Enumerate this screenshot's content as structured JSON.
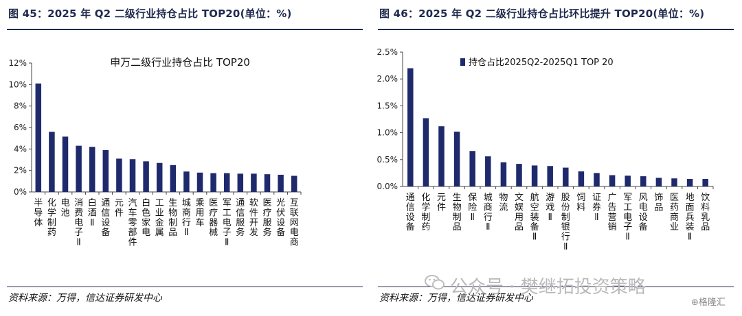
{
  "left": {
    "figure_title": "图 45：2025 年 Q2 二级行业持仓占比 TOP20(单位：%)",
    "source": "资料来源：万得，信达证券研发中心"
  },
  "right": {
    "figure_title": "图 46：2025 年 Q2 二级行业持仓占比环比提升 TOP20(单位：%)",
    "source": "资料来源：万得，信达证券研发中心"
  },
  "watermark": {
    "text": "公众号 · 樊继拓投资策略",
    "logo_text": "格隆汇"
  },
  "chart_data": [
    {
      "type": "bar",
      "title": "申万二级行业持仓占比 TOP20",
      "xlabel": "",
      "ylabel": "",
      "ylim": [
        0,
        12
      ],
      "yticks": [
        "0%",
        "2%",
        "4%",
        "6%",
        "8%",
        "10%",
        "12%"
      ],
      "ytick_values": [
        0,
        2,
        4,
        6,
        8,
        10,
        12
      ],
      "grid": false,
      "bar_color": "#1f2a6d",
      "categories": [
        "半导体",
        "化学制药",
        "电池",
        "消费电子Ⅱ",
        "白酒Ⅱ",
        "通信设备",
        "元件",
        "汽车零部件",
        "白色家电",
        "工业金属",
        "生物制品",
        "城商行Ⅱ",
        "乘用车",
        "医疗器械",
        "军工电子Ⅱ",
        "通信服务",
        "软件开发",
        "医疗服务",
        "光伏设备",
        "互联网电商"
      ],
      "values": [
        10.1,
        5.6,
        5.15,
        4.3,
        4.2,
        3.9,
        3.1,
        3.05,
        2.85,
        2.7,
        2.5,
        1.9,
        1.8,
        1.75,
        1.75,
        1.7,
        1.7,
        1.65,
        1.6,
        1.5
      ]
    },
    {
      "type": "bar",
      "title": "",
      "xlabel": "",
      "ylabel": "",
      "ylim": [
        0,
        2.5
      ],
      "yticks": [
        "0.0%",
        "0.5%",
        "1.0%",
        "1.5%",
        "2.0%",
        "2.5%"
      ],
      "ytick_values": [
        0,
        0.5,
        1.0,
        1.5,
        2.0,
        2.5
      ],
      "grid": false,
      "legend": "top-left",
      "bar_color": "#1f2a6d",
      "series": [
        {
          "name": "持仓占比2025Q2-2025Q1 TOP 20"
        }
      ],
      "categories": [
        "通信设备",
        "化学制药",
        "元件",
        "生物制品",
        "保险Ⅱ",
        "城商行Ⅱ",
        "物流",
        "文娱用品",
        "航空装备Ⅱ",
        "游戏Ⅱ",
        "股份制银行Ⅱ",
        "饲料",
        "证券Ⅱ",
        "广告营销",
        "军工电子Ⅱ",
        "风电设备",
        "饰品",
        "医药商业",
        "地面兵装Ⅱ",
        "饮料乳品"
      ],
      "values": [
        2.2,
        1.27,
        1.12,
        1.02,
        0.66,
        0.56,
        0.45,
        0.42,
        0.39,
        0.38,
        0.35,
        0.28,
        0.25,
        0.21,
        0.2,
        0.19,
        0.16,
        0.15,
        0.14,
        0.14
      ]
    }
  ]
}
